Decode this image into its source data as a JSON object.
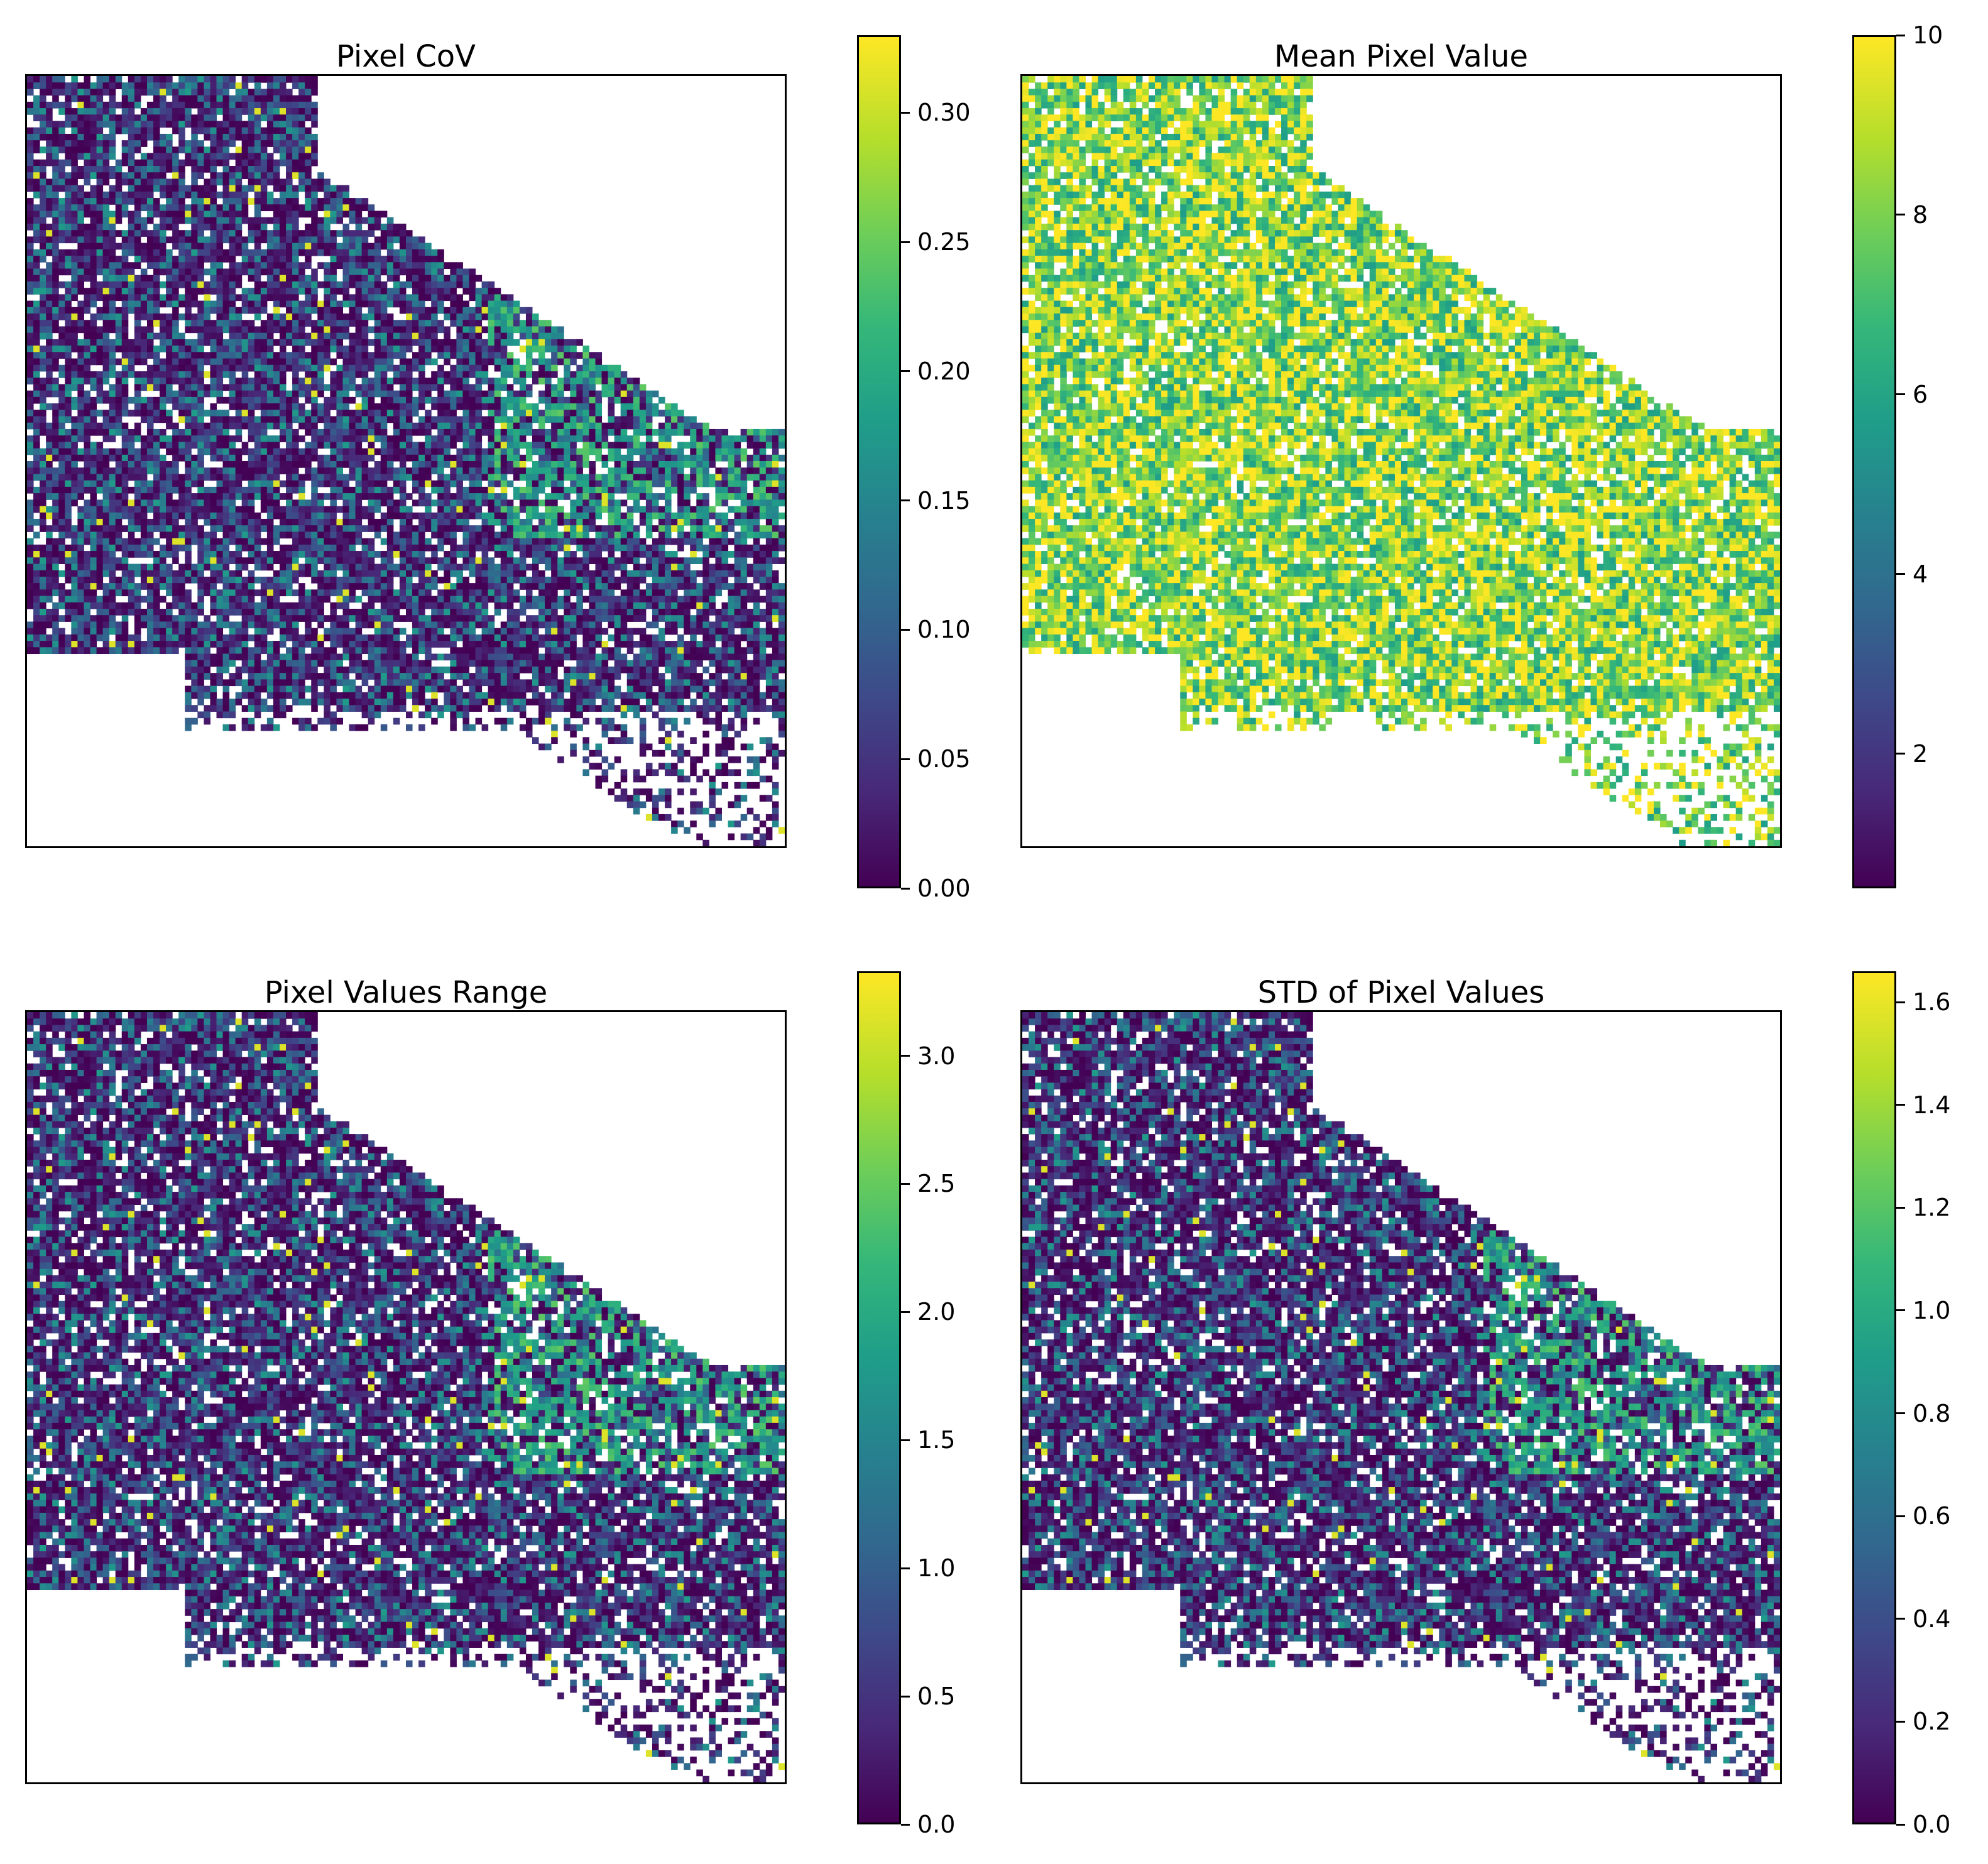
{
  "colormap": "viridis",
  "colors": {
    "low": "#440154",
    "mid": "#21918c",
    "high": "#fde725",
    "background": "#ffffff",
    "frame": "#000000"
  },
  "chart_data": [
    {
      "type": "heatmap",
      "title": "Pixel CoV",
      "colorbar": {
        "range": [
          0.0,
          0.33
        ],
        "ticks": [
          "0.00",
          "0.05",
          "0.10",
          "0.15",
          "0.20",
          "0.25",
          "0.30"
        ],
        "tick_values": [
          0.0,
          0.05,
          0.1,
          0.15,
          0.2,
          0.25,
          0.3
        ]
      },
      "axes_ticks": false
    },
    {
      "type": "heatmap",
      "title": "Mean Pixel Value",
      "colorbar": {
        "range": [
          0.5,
          10.0
        ],
        "ticks": [
          "2",
          "4",
          "6",
          "8",
          "10"
        ],
        "tick_values": [
          2,
          4,
          6,
          8,
          10
        ]
      },
      "axes_ticks": false
    },
    {
      "type": "heatmap",
      "title": "Pixel Values Range",
      "colorbar": {
        "range": [
          0.0,
          3.33
        ],
        "ticks": [
          "0.0",
          "0.5",
          "1.0",
          "1.5",
          "2.0",
          "2.5",
          "3.0"
        ],
        "tick_values": [
          0.0,
          0.5,
          1.0,
          1.5,
          2.0,
          2.5,
          3.0
        ]
      },
      "axes_ticks": false
    },
    {
      "type": "heatmap",
      "title": "STD of Pixel Values",
      "colorbar": {
        "range": [
          0.0,
          1.66
        ],
        "ticks": [
          "0.0",
          "0.2",
          "0.4",
          "0.6",
          "0.8",
          "1.0",
          "1.2",
          "1.4",
          "1.6"
        ],
        "tick_values": [
          0.0,
          0.2,
          0.4,
          0.6,
          0.8,
          1.0,
          1.2,
          1.4,
          1.6
        ]
      },
      "axes_ticks": false
    }
  ]
}
